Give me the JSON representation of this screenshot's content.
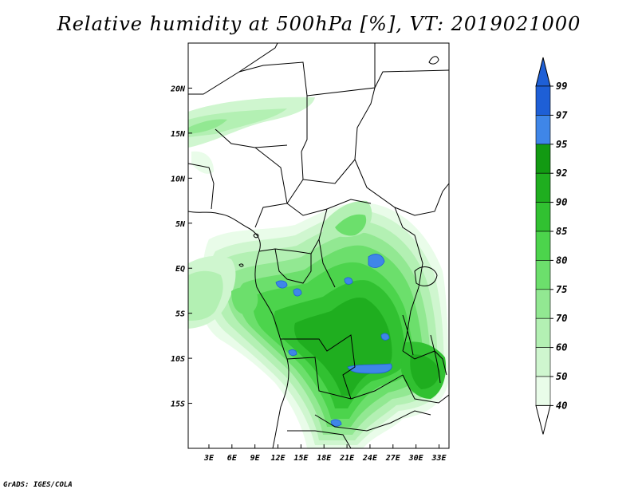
{
  "title": "Relative humidity at 500hPa [%], VT: 2019021000",
  "footer": "GrADS: IGES/COLA",
  "map": {
    "lon_labels": [
      "3E",
      "6E",
      "9E",
      "12E",
      "15E",
      "18E",
      "21E",
      "24E",
      "27E",
      "30E",
      "33E"
    ],
    "lat_labels": [
      "20N",
      "15N",
      "10N",
      "5N",
      "EQ",
      "5S",
      "10S",
      "15S"
    ],
    "lon_values": [
      3,
      6,
      9,
      12,
      15,
      18,
      21,
      24,
      27,
      30,
      33
    ],
    "lat_values": [
      20,
      15,
      10,
      5,
      0,
      -5,
      -10,
      -15
    ],
    "lon_range": [
      0.3,
      34.3
    ],
    "lat_range": [
      -20,
      25
    ]
  },
  "colorbar": {
    "levels": [
      "99",
      "97",
      "95",
      "92",
      "90",
      "85",
      "80",
      "75",
      "70",
      "60",
      "50",
      "40"
    ],
    "colors": [
      "#1e5fd6",
      "#3f86e8",
      "#129a12",
      "#1fae1f",
      "#31c131",
      "#4cd44c",
      "#6cdf6c",
      "#92e892",
      "#b3f0b3",
      "#cff6cf",
      "#e9fce9"
    ]
  }
}
